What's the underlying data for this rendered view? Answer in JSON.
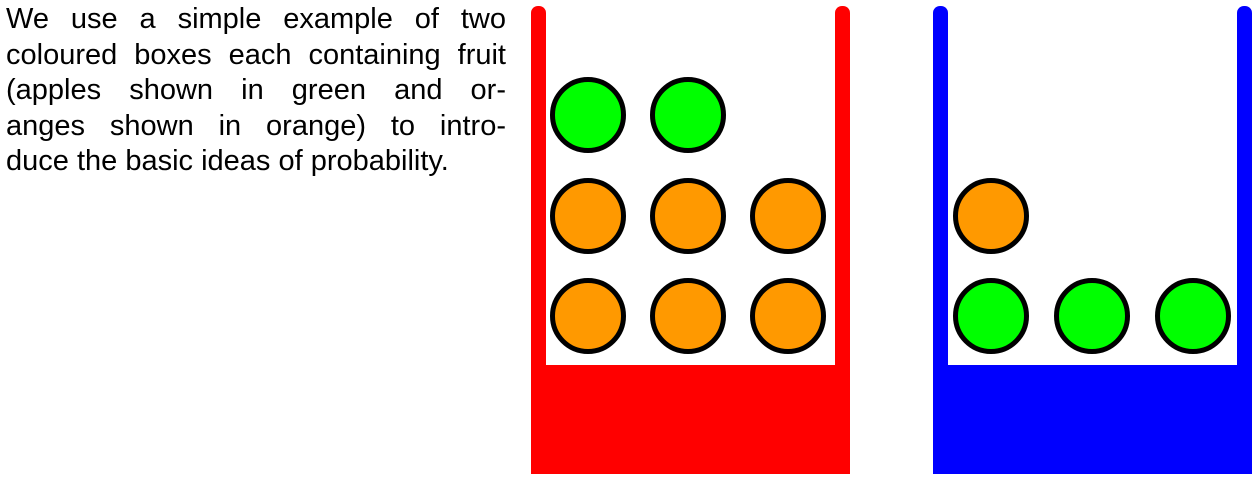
{
  "caption": {
    "lines": [
      "We use a simple example of two",
      "coloured boxes each containing fruit",
      "(apples shown in green and or-",
      "anges shown in orange) to intro-",
      "duce the basic ideas of probability."
    ]
  },
  "colors": {
    "red_box": "#ff0000",
    "blue_box": "#0000ff",
    "apple": "#00ff00",
    "orange": "#ff9900",
    "outline": "#000000"
  },
  "boxes": [
    {
      "name": "red-box",
      "color": "red",
      "contents": {
        "apples": 2,
        "oranges": 6
      }
    },
    {
      "name": "blue-box",
      "color": "blue",
      "contents": {
        "apples": 3,
        "oranges": 1
      }
    }
  ]
}
